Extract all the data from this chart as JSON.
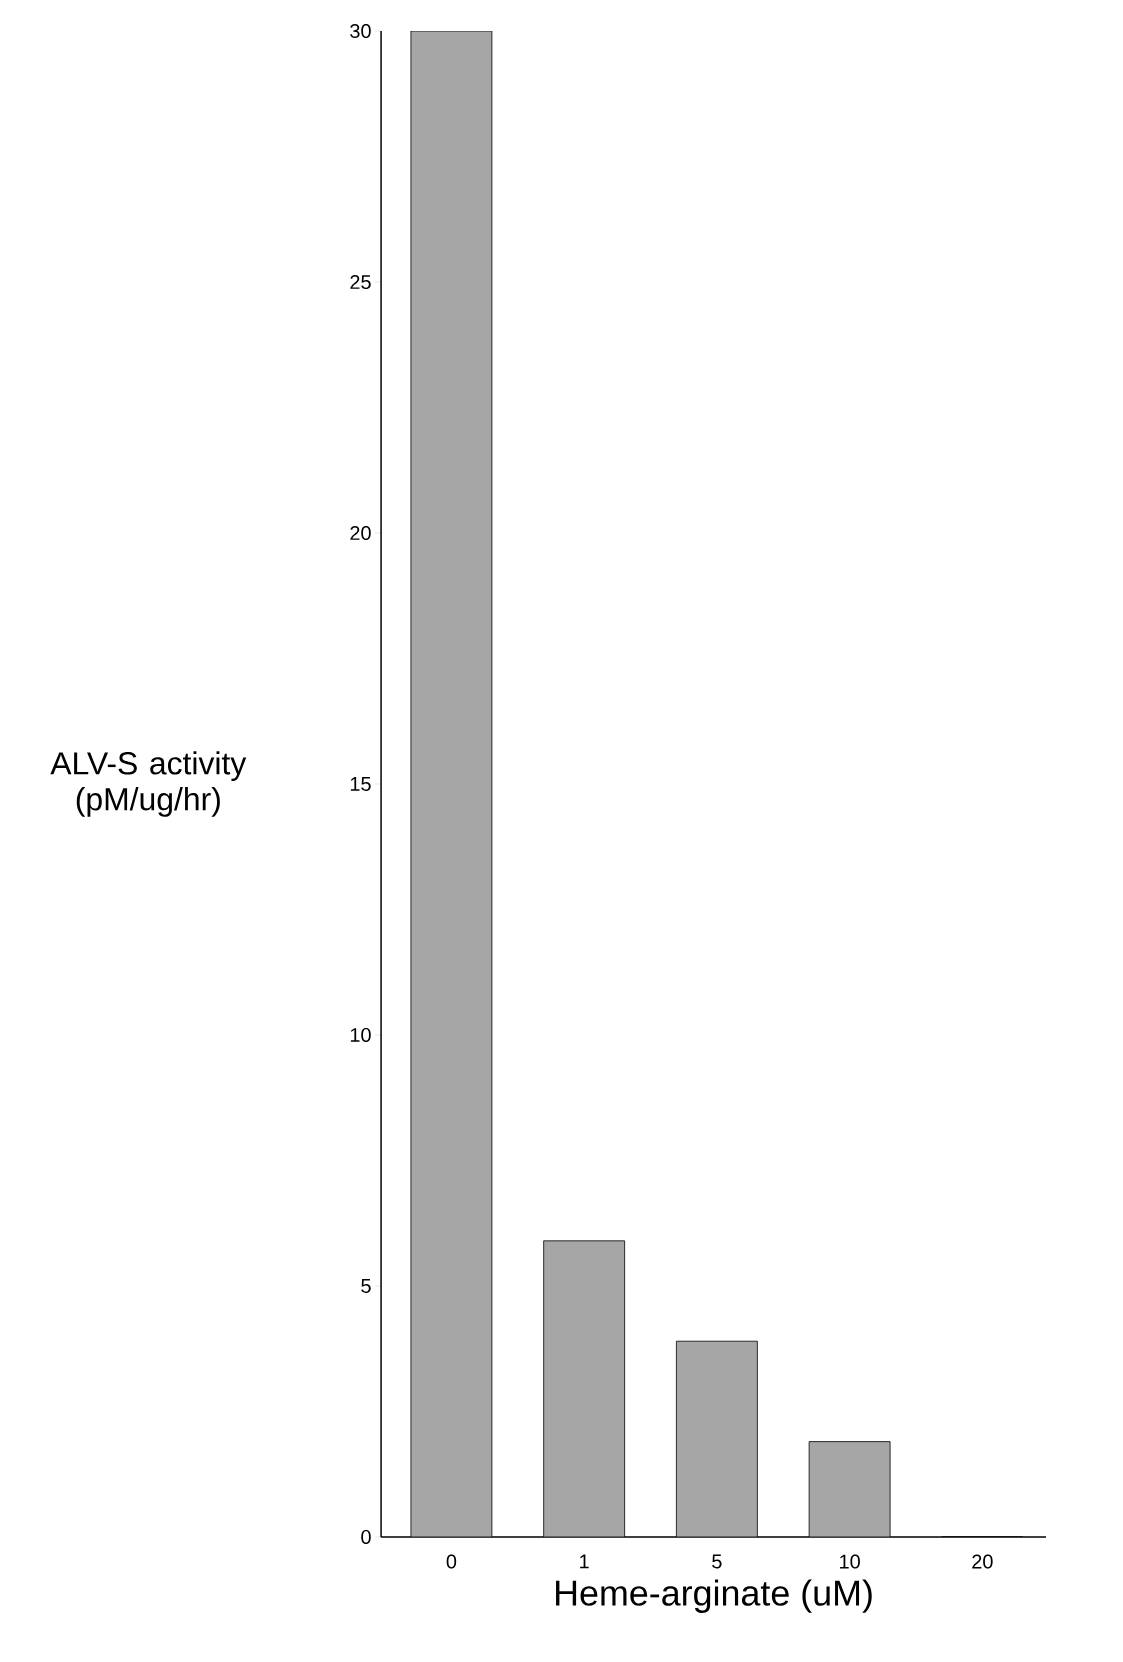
{
  "chart_data": {
    "type": "bar",
    "xlabel": "Heme-arginate (uM)",
    "ylabel": "ALV-S activity (pM/ug/hr)",
    "categories": [
      "0",
      "1",
      "5",
      "10",
      "20"
    ],
    "values": [
      30,
      5.9,
      3.9,
      1.9,
      0
    ],
    "color": "#a6a6a6",
    "ylim": [
      0,
      30
    ],
    "yticks": [
      0,
      5,
      10,
      15,
      20,
      25,
      30
    ]
  }
}
